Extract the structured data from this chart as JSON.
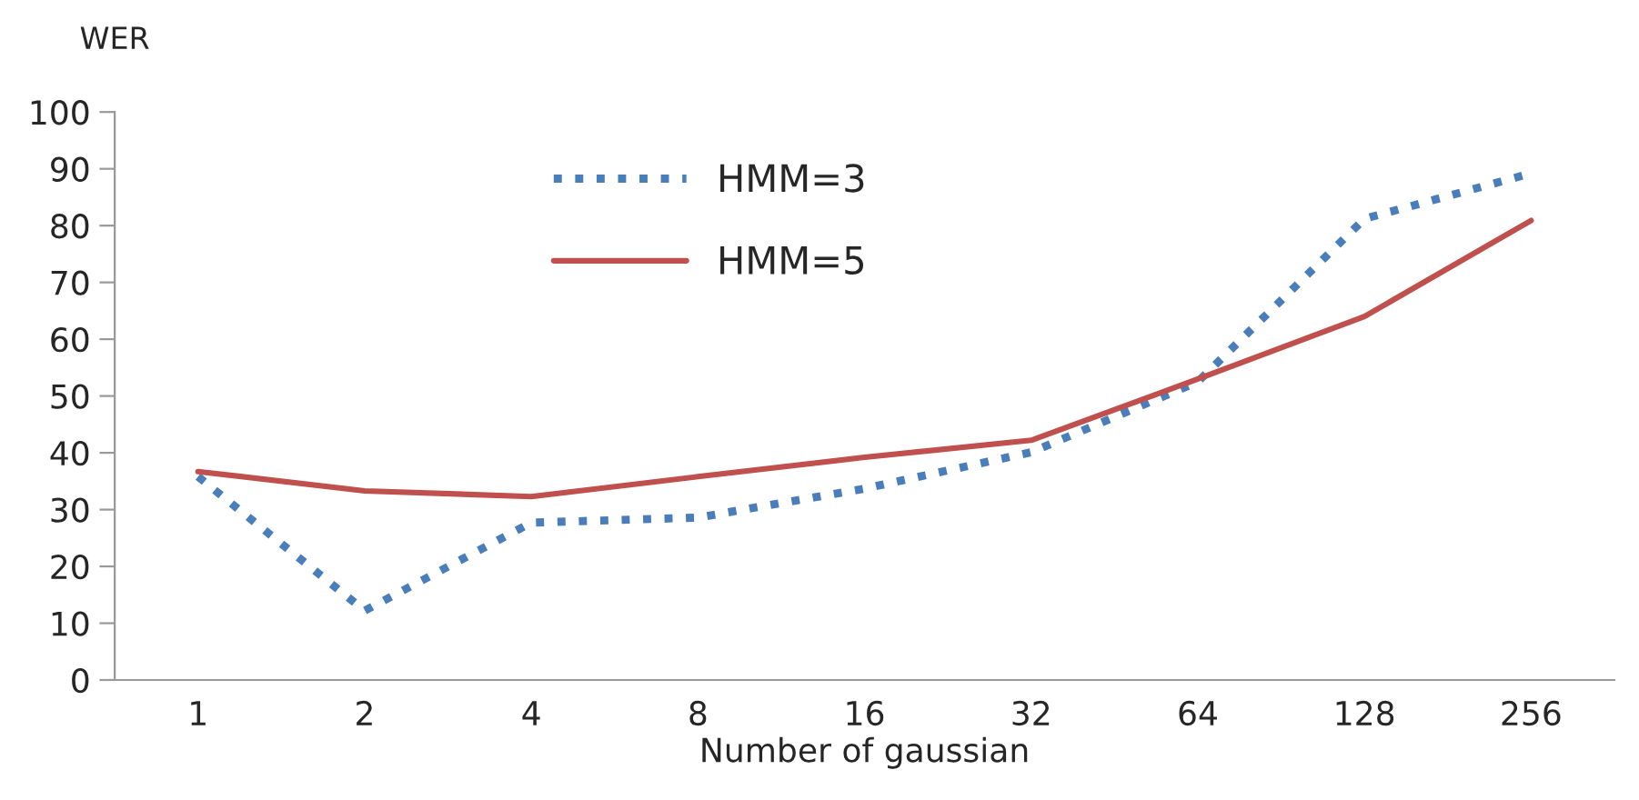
{
  "chart_data": {
    "type": "line",
    "ylabel": "WER",
    "xlabel": "Number of gaussian",
    "categories": [
      "1",
      "2",
      "4",
      "8",
      "16",
      "32",
      "64",
      "128",
      "256"
    ],
    "series": [
      {
        "name": "HMM=3",
        "color": "#4a7ebb",
        "line_style": "dotted",
        "values": [
          35.8,
          12.2,
          27.7,
          28.6,
          33.7,
          40.1,
          52.5,
          81.2,
          89.2
        ]
      },
      {
        "name": "HMM=5",
        "color": "#c0504d",
        "line_style": "solid",
        "values": [
          36.7,
          33.3,
          32.3,
          35.8,
          39.2,
          42.2,
          53,
          64,
          80.9
        ]
      }
    ],
    "ylim": [
      0,
      100
    ],
    "yticks": [
      0,
      10,
      20,
      30,
      40,
      50,
      60,
      70,
      80,
      90,
      100
    ],
    "grid": false,
    "legend": "top",
    "marker": "none"
  }
}
